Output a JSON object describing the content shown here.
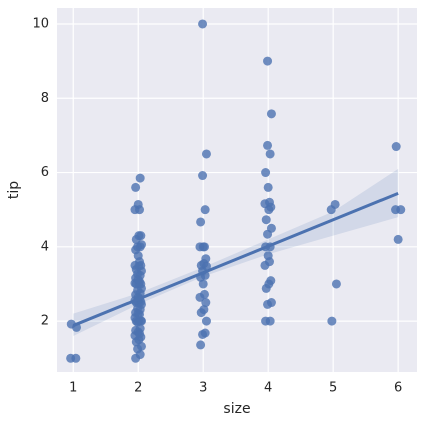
{
  "chart_data": {
    "type": "scatter",
    "x_label": "size",
    "y_label": "tip",
    "color": "#4c72b0",
    "grid": true,
    "xlim": [
      0.75,
      6.29
    ],
    "ylim": [
      0.63,
      10.43
    ],
    "xticks": [
      1,
      2,
      3,
      4,
      5,
      6
    ],
    "yticks": [
      2,
      4,
      6,
      8,
      10
    ],
    "x": [
      0.96,
      1.04,
      0.97,
      1.05,
      1.96,
      2.03,
      1.99,
      2.05,
      1.97,
      2.01,
      2.04,
      1.95,
      2.02,
      2.0,
      1.96,
      2.03,
      1.99,
      2.05,
      1.97,
      2.01,
      2.04,
      1.95,
      2.02,
      2.0,
      1.96,
      2.03,
      1.99,
      2.05,
      1.97,
      2.01,
      2.04,
      1.95,
      2.02,
      2.0,
      1.96,
      2.03,
      1.99,
      2.05,
      1.97,
      2.01,
      2.04,
      1.95,
      2.02,
      2.0,
      1.96,
      2.03,
      1.99,
      2.05,
      1.97,
      2.01,
      2.04,
      1.95,
      2.02,
      2.0,
      1.96,
      2.03,
      1.99,
      2.05,
      1.97,
      2.01,
      2.04,
      1.95,
      2.02,
      2.0,
      1.96,
      2.03,
      2.96,
      3.03,
      2.99,
      3.05,
      2.97,
      3.01,
      3.04,
      2.95,
      3.02,
      3.0,
      2.96,
      3.03,
      2.99,
      3.05,
      2.97,
      3.01,
      3.04,
      2.95,
      3.02,
      3.0,
      2.96,
      3.03,
      2.99,
      3.05,
      2.99,
      3.96,
      4.03,
      3.99,
      4.05,
      3.97,
      4.01,
      4.04,
      3.95,
      4.02,
      4.0,
      3.96,
      4.03,
      3.99,
      4.05,
      3.97,
      4.01,
      4.04,
      3.95,
      4.02,
      4.0,
      3.96,
      4.03,
      3.99,
      4.05,
      3.99,
      4.98,
      5.05,
      4.97,
      5.03,
      6.0,
      5.96,
      6.04,
      5.97
    ],
    "y": [
      1.0,
      1.0,
      1.92,
      1.83,
      1.0,
      1.1,
      1.25,
      1.32,
      1.44,
      1.5,
      1.57,
      1.61,
      1.66,
      1.71,
      1.75,
      1.8,
      1.97,
      2.0,
      2.0,
      2.0,
      2.01,
      2.09,
      2.18,
      2.2,
      2.23,
      2.31,
      2.34,
      2.45,
      2.5,
      2.5,
      2.52,
      2.55,
      2.6,
      2.64,
      2.71,
      2.75,
      2.83,
      2.88,
      3.0,
      3.0,
      3.0,
      3.02,
      3.06,
      3.12,
      3.16,
      3.23,
      3.27,
      3.35,
      3.39,
      3.48,
      3.5,
      3.5,
      3.6,
      3.76,
      3.92,
      4.0,
      4.0,
      4.06,
      4.2,
      4.3,
      4.3,
      5.0,
      5.0,
      5.14,
      5.6,
      5.85,
      1.36,
      1.68,
      1.64,
      2.0,
      2.23,
      2.31,
      2.5,
      2.64,
      2.72,
      3.0,
      3.18,
      3.23,
      3.35,
      3.48,
      3.5,
      3.55,
      3.68,
      4.0,
      4.0,
      4.0,
      4.67,
      5.0,
      5.92,
      6.5,
      10.0,
      2.0,
      2.0,
      2.45,
      2.5,
      2.88,
      3.0,
      3.09,
      3.5,
      3.6,
      3.76,
      4.0,
      4.0,
      4.34,
      4.5,
      4.73,
      5.0,
      5.07,
      5.16,
      5.2,
      5.6,
      6.0,
      6.5,
      6.73,
      7.58,
      9.0,
      2.0,
      3.0,
      5.0,
      5.14,
      4.2,
      5.0,
      5.0,
      6.7
    ],
    "regression": {
      "x": [
        1,
        6
      ],
      "y": [
        1.88,
        5.44
      ]
    },
    "ci": {
      "x": [
        1,
        2,
        3,
        4,
        5,
        6
      ],
      "lower": [
        1.6,
        2.45,
        3.2,
        3.8,
        4.3,
        4.8
      ],
      "upper": [
        2.2,
        2.75,
        3.45,
        4.2,
        4.95,
        6.1
      ]
    }
  }
}
